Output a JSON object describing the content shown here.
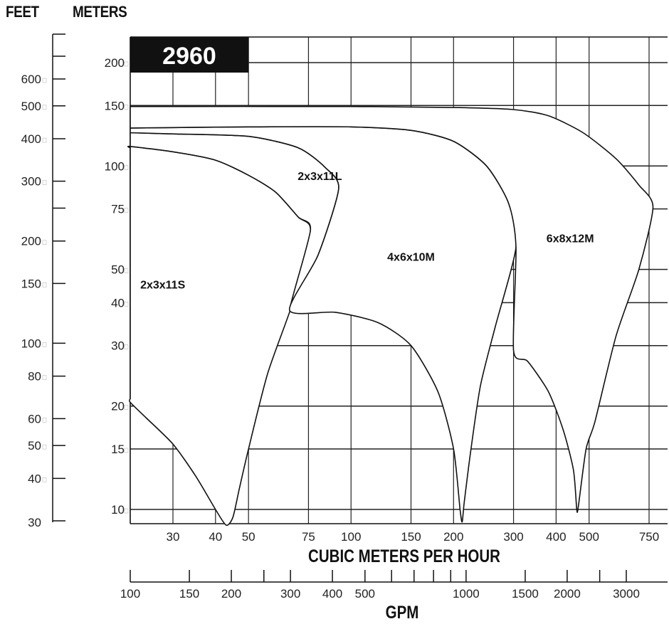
{
  "header": {
    "feet_label": "FEET",
    "meters_label": "METERS",
    "speed_badge": "2960"
  },
  "chart_data": {
    "type": "area",
    "title": "",
    "speed_rpm_badge": "2960",
    "x_primary": {
      "label": "CUBIC METERS PER HOUR",
      "scale": "log",
      "range": [
        17,
        900
      ],
      "ticks": [
        30,
        40,
        50,
        75,
        100,
        150,
        200,
        300,
        400,
        500,
        750
      ],
      "tick_labels": [
        "30",
        "40",
        "50",
        "75",
        "100",
        "150",
        "200",
        "300",
        "400",
        "500",
        "750"
      ]
    },
    "x_secondary": {
      "label": "GPM",
      "scale": "log",
      "ticks": [
        100,
        150,
        200,
        300,
        400,
        500,
        1000,
        1500,
        2000,
        3000
      ],
      "tick_labels": [
        "100",
        "150",
        "200",
        "300",
        "400",
        "500",
        "1000",
        "1500",
        "2000",
        "3000"
      ],
      "minor_ticks": [
        250,
        600,
        700,
        800,
        900,
        2500
      ]
    },
    "y_primary": {
      "label": "METERS",
      "scale": "log",
      "range": [
        9,
        220
      ],
      "ticks": [
        10,
        15,
        20,
        30,
        40,
        50,
        75,
        100,
        150,
        200
      ],
      "tick_labels": [
        "10",
        "15",
        "20",
        "30",
        "40",
        "50",
        "75",
        "100",
        "150",
        "200"
      ]
    },
    "y_secondary": {
      "label": "FEET",
      "scale": "log",
      "ticks": [
        30,
        40,
        50,
        60,
        80,
        100,
        150,
        200,
        300,
        400,
        500,
        600
      ],
      "tick_labels": [
        "30",
        "40",
        "50",
        "60",
        "80",
        "100",
        "150",
        "200",
        "300",
        "400",
        "500",
        "600"
      ],
      "minor_ticks": [
        250,
        700
      ]
    },
    "grid": true,
    "regions": [
      {
        "name": "2x3x11S",
        "outline": [
          [
            17,
            113
          ],
          [
            20,
            114
          ],
          [
            30,
            110
          ],
          [
            40,
            104
          ],
          [
            50,
            94
          ],
          [
            60,
            84
          ],
          [
            70,
            71
          ],
          [
            76,
            65
          ],
          [
            68,
            41
          ],
          [
            57,
            25
          ],
          [
            50,
            15
          ],
          [
            47,
            11.5
          ],
          [
            45,
            9.5
          ],
          [
            43,
            9.0
          ],
          [
            40,
            10
          ],
          [
            35,
            12.5
          ],
          [
            30,
            15.5
          ],
          [
            25,
            18.5
          ],
          [
            20,
            20.5
          ],
          [
            17,
            21
          ]
        ]
      },
      {
        "name": "2x3x11L",
        "outline": [
          [
            17,
            125
          ],
          [
            30,
            124
          ],
          [
            50,
            122
          ],
          [
            70,
            113
          ],
          [
            84,
            99
          ],
          [
            92,
            86
          ],
          [
            80,
            55
          ],
          [
            66,
            38
          ],
          [
            76,
            65
          ],
          [
            70,
            71
          ],
          [
            60,
            84
          ],
          [
            50,
            94
          ],
          [
            40,
            104
          ],
          [
            30,
            110
          ],
          [
            20,
            114
          ],
          [
            17,
            113
          ]
        ]
      },
      {
        "name": "4x6x10M",
        "outline": [
          [
            17,
            129
          ],
          [
            50,
            130
          ],
          [
            100,
            130
          ],
          [
            150,
            127
          ],
          [
            200,
            118
          ],
          [
            250,
            100
          ],
          [
            290,
            78
          ],
          [
            305,
            58
          ],
          [
            265,
            34
          ],
          [
            240,
            23
          ],
          [
            225,
            15
          ],
          [
            215,
            10.5
          ],
          [
            212,
            9.2
          ],
          [
            209,
            10
          ],
          [
            200,
            15
          ],
          [
            180,
            22
          ],
          [
            150,
            30
          ],
          [
            120,
            35
          ],
          [
            90,
            37.5
          ],
          [
            66,
            38
          ],
          [
            80,
            55
          ],
          [
            92,
            86
          ],
          [
            84,
            99
          ],
          [
            70,
            113
          ],
          [
            50,
            122
          ],
          [
            30,
            124
          ],
          [
            17,
            125
          ]
        ]
      },
      {
        "name": "6x8x12M",
        "outline": [
          [
            17,
            149
          ],
          [
            100,
            149
          ],
          [
            200,
            148
          ],
          [
            300,
            146
          ],
          [
            380,
            140
          ],
          [
            480,
            125
          ],
          [
            600,
            105
          ],
          [
            700,
            88
          ],
          [
            770,
            76
          ],
          [
            700,
            50
          ],
          [
            600,
            32
          ],
          [
            520,
            18
          ],
          [
            490,
            15
          ],
          [
            465,
            10.2
          ],
          [
            460,
            10
          ],
          [
            450,
            13
          ],
          [
            420,
            17
          ],
          [
            380,
            22
          ],
          [
            330,
            27
          ],
          [
            300,
            29
          ],
          [
            305,
            58
          ],
          [
            290,
            78
          ],
          [
            250,
            100
          ],
          [
            200,
            118
          ],
          [
            150,
            127
          ],
          [
            100,
            130
          ],
          [
            50,
            130
          ],
          [
            17,
            129
          ]
        ]
      }
    ],
    "region_labels": [
      {
        "name": "2x3x11S",
        "text": "2x3x11S",
        "x": 28,
        "y": 44
      },
      {
        "name": "2x3x11L",
        "text": "2x3x11L",
        "x": 81,
        "y": 91
      },
      {
        "name": "4x6x10M",
        "text": "4x6x10M",
        "x": 150,
        "y": 53
      },
      {
        "name": "6x8x12M",
        "text": "6x8x12M",
        "x": 440,
        "y": 60
      }
    ]
  }
}
